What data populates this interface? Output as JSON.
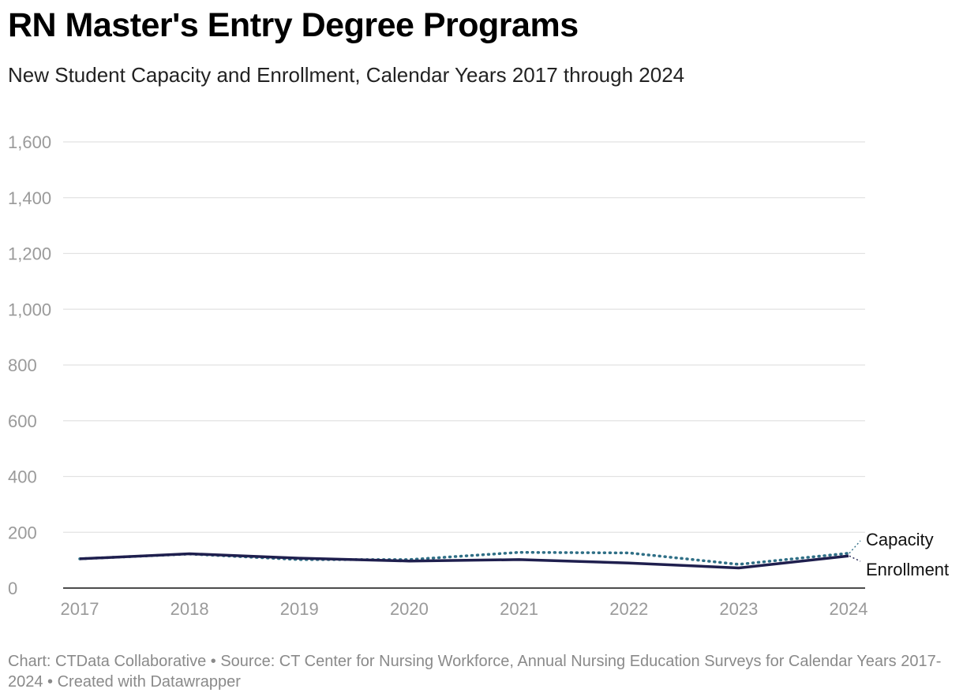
{
  "header": {
    "title": "RN Master's Entry Degree Programs",
    "subtitle": "New Student Capacity and Enrollment, Calendar Years 2017 through 2024"
  },
  "footer": {
    "text": "Chart: CTData Collaborative • Source: CT Center for Nursing Workforce, Annual Nursing Education Surveys for Calendar Years 2017-2024 • Created with Datawrapper"
  },
  "colors": {
    "capacity": "#2f6f86",
    "enrollment": "#1f1f4e",
    "grid": "#e2e2e2",
    "baseline": "#111111"
  },
  "chart_data": {
    "type": "line",
    "title": "RN Master's Entry Degree Programs",
    "subtitle": "New Student Capacity and Enrollment, Calendar Years 2017 through 2024",
    "xlabel": "",
    "ylabel": "",
    "x": [
      "2017",
      "2018",
      "2019",
      "2020",
      "2021",
      "2022",
      "2023",
      "2024"
    ],
    "yticks": [
      0,
      200,
      400,
      600,
      800,
      1000,
      1200,
      1400,
      1600
    ],
    "ytick_labels": [
      "0",
      "200",
      "400",
      "600",
      "800",
      "1,000",
      "1,200",
      "1,400",
      "1,600"
    ],
    "ylim": [
      0,
      1600
    ],
    "grid": true,
    "legend": "direct labels at line ends",
    "series": [
      {
        "name": "Capacity",
        "style": "dotted",
        "values": [
          105,
          122,
          102,
          102,
          128,
          126,
          85,
          125
        ]
      },
      {
        "name": "Enrollment",
        "style": "solid",
        "values": [
          105,
          123,
          107,
          97,
          102,
          90,
          72,
          115
        ]
      }
    ]
  }
}
